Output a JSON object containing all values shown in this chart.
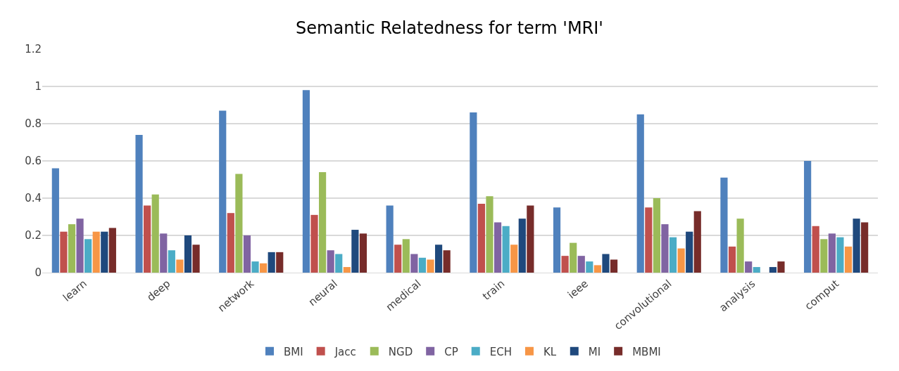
{
  "chart_data": {
    "type": "bar",
    "title": "Semantic Relatedness for term 'MRI'",
    "categories": [
      "learn",
      "deep",
      "network",
      "neural",
      "medical",
      "train",
      "ieee",
      "convolutional",
      "analysis",
      "comput"
    ],
    "series": [
      {
        "name": "BMI",
        "color": "#4f81bd",
        "values": [
          0.56,
          0.74,
          0.87,
          0.98,
          0.36,
          0.86,
          0.35,
          0.85,
          0.51,
          0.6
        ]
      },
      {
        "name": "Jacc",
        "color": "#c0504d",
        "values": [
          0.22,
          0.36,
          0.32,
          0.31,
          0.15,
          0.37,
          0.09,
          0.35,
          0.14,
          0.25
        ]
      },
      {
        "name": "NGD",
        "color": "#9bbb59",
        "values": [
          0.26,
          0.42,
          0.53,
          0.54,
          0.18,
          0.41,
          0.16,
          0.4,
          0.29,
          0.18
        ]
      },
      {
        "name": "CP",
        "color": "#8064a2",
        "values": [
          0.29,
          0.21,
          0.2,
          0.12,
          0.1,
          0.27,
          0.09,
          0.26,
          0.06,
          0.21
        ]
      },
      {
        "name": "ECH",
        "color": "#4bacc6",
        "values": [
          0.18,
          0.12,
          0.06,
          0.1,
          0.08,
          0.25,
          0.06,
          0.19,
          0.03,
          0.19
        ]
      },
      {
        "name": "KL",
        "color": "#f79646",
        "values": [
          0.22,
          0.07,
          0.05,
          0.03,
          0.07,
          0.15,
          0.04,
          0.13,
          0,
          0.14
        ]
      },
      {
        "name": "MI",
        "color": "#1f497d",
        "values": [
          0.22,
          0.2,
          0.11,
          0.23,
          0.15,
          0.29,
          0.1,
          0.22,
          0.03,
          0.29
        ]
      },
      {
        "name": "MBMI",
        "color": "#772c2a",
        "values": [
          0.24,
          0.15,
          0.11,
          0.21,
          0.12,
          0.36,
          0.07,
          0.33,
          0.06,
          0.27
        ]
      }
    ],
    "ylim": [
      0,
      1.2
    ],
    "yticks": [
      0,
      0.2,
      0.4,
      0.6,
      0.8,
      1,
      1.2
    ],
    "grid": "y",
    "legend": "bottom"
  }
}
